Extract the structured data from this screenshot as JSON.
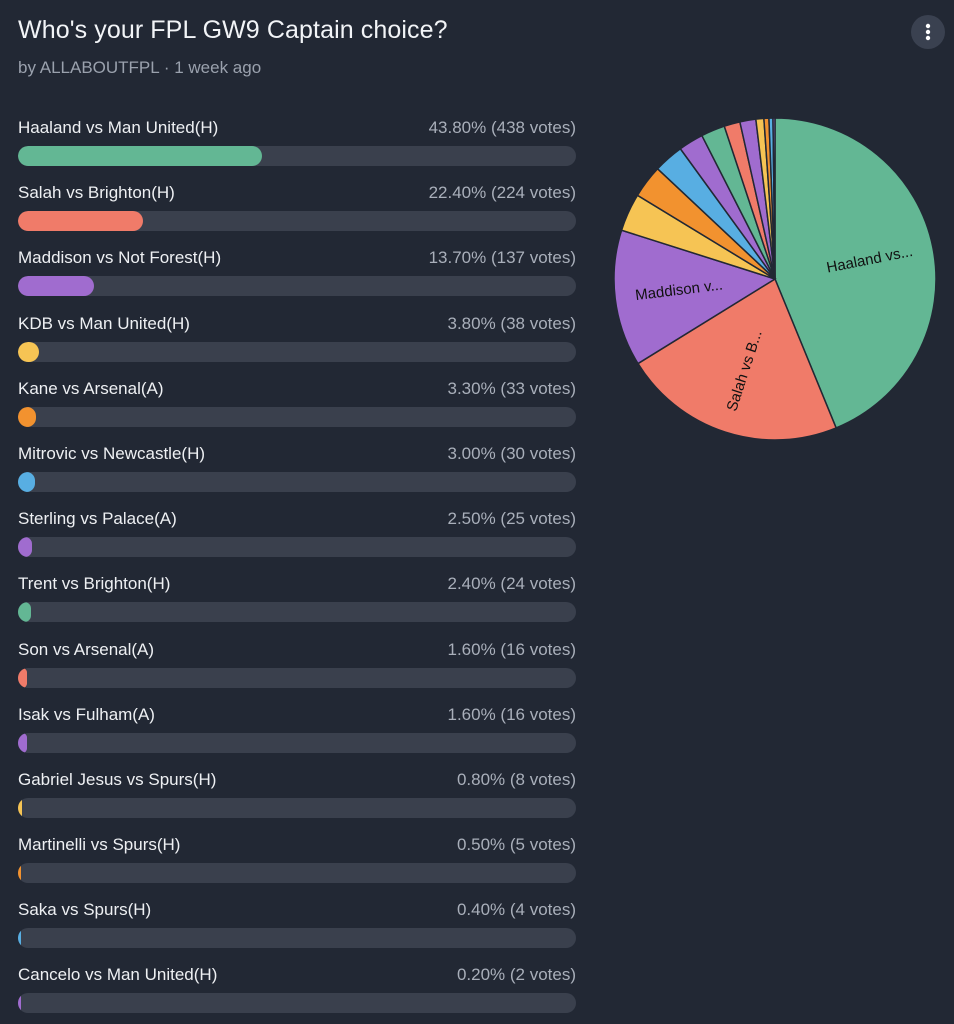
{
  "poll": {
    "title": "Who's your FPL GW9 Captain choice?",
    "byline": "by ALLABOUTFPL · 1 week ago",
    "menu_icon": "more-vertical-icon"
  },
  "colors": {
    "background": "#222834",
    "track": "#3a404d",
    "slice_border": "#222834"
  },
  "chart_data": {
    "type": "pie",
    "options": [
      {
        "label": "Haaland vs Man United(H)",
        "percent": 43.8,
        "result": "43.80% (438 votes)",
        "votes": 438,
        "color": "#63b794",
        "pie_label": "Haaland vs..."
      },
      {
        "label": "Salah vs Brighton(H)",
        "percent": 22.4,
        "result": "22.40% (224 votes)",
        "votes": 224,
        "color": "#f07b69",
        "pie_label": "Salah vs B..."
      },
      {
        "label": "Maddison vs Not Forest(H)",
        "percent": 13.7,
        "result": "13.70% (137 votes)",
        "votes": 137,
        "color": "#a06ccf",
        "pie_label": "Maddison v..."
      },
      {
        "label": "KDB vs Man United(H)",
        "percent": 3.8,
        "result": "3.80% (38 votes)",
        "votes": 38,
        "color": "#f6c454",
        "pie_label": ""
      },
      {
        "label": "Kane vs Arsenal(A)",
        "percent": 3.3,
        "result": "3.30% (33 votes)",
        "votes": 33,
        "color": "#f2922f",
        "pie_label": ""
      },
      {
        "label": "Mitrovic vs Newcastle(H)",
        "percent": 3.0,
        "result": "3.00% (30 votes)",
        "votes": 30,
        "color": "#58aee2",
        "pie_label": ""
      },
      {
        "label": "Sterling vs Palace(A)",
        "percent": 2.5,
        "result": "2.50% (25 votes)",
        "votes": 25,
        "color": "#a06ccf",
        "pie_label": ""
      },
      {
        "label": "Trent vs Brighton(H)",
        "percent": 2.4,
        "result": "2.40% (24 votes)",
        "votes": 24,
        "color": "#63b794",
        "pie_label": ""
      },
      {
        "label": "Son vs Arsenal(A)",
        "percent": 1.6,
        "result": "1.60% (16 votes)",
        "votes": 16,
        "color": "#f07b69",
        "pie_label": ""
      },
      {
        "label": "Isak vs Fulham(A)",
        "percent": 1.6,
        "result": "1.60% (16 votes)",
        "votes": 16,
        "color": "#a06ccf",
        "pie_label": ""
      },
      {
        "label": "Gabriel Jesus vs Spurs(H)",
        "percent": 0.8,
        "result": "0.80% (8 votes)",
        "votes": 8,
        "color": "#f6c454",
        "pie_label": ""
      },
      {
        "label": "Martinelli vs Spurs(H)",
        "percent": 0.5,
        "result": "0.50% (5 votes)",
        "votes": 5,
        "color": "#f2922f",
        "pie_label": ""
      },
      {
        "label": "Saka vs Spurs(H)",
        "percent": 0.4,
        "result": "0.40% (4 votes)",
        "votes": 4,
        "color": "#58aee2",
        "pie_label": ""
      },
      {
        "label": "Cancelo vs Man United(H)",
        "percent": 0.2,
        "result": "0.20% (2 votes)",
        "votes": 2,
        "color": "#a06ccf",
        "pie_label": ""
      }
    ]
  }
}
